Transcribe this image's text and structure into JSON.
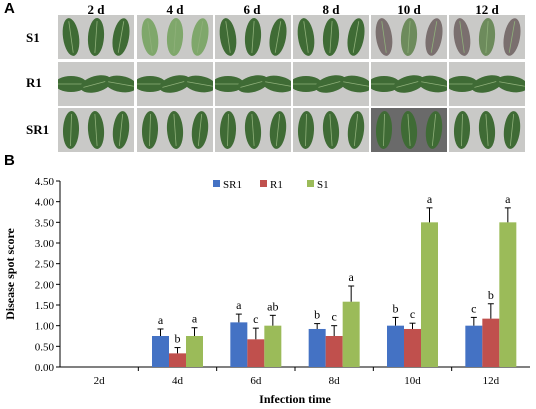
{
  "panel_a": {
    "label": "A",
    "days": [
      "2 d",
      "4 d",
      "6 d",
      "8 d",
      "10 d",
      "12 d"
    ],
    "rows": [
      "S1",
      "R1",
      "SR1"
    ],
    "leaf_color": "#3f6b35",
    "background_color": "#c9c9c7"
  },
  "panel_b": {
    "label": "B"
  },
  "chart_data": {
    "type": "bar",
    "categories": [
      "2d",
      "4d",
      "6d",
      "8d",
      "10d",
      "12d"
    ],
    "ylabel": "Disease spot score",
    "xlabel": "Infection time",
    "ylim": [
      0,
      4.5
    ],
    "yticks": [
      "0.00",
      "0.50",
      "1.00",
      "1.50",
      "2.00",
      "2.50",
      "3.00",
      "3.50",
      "4.00",
      "4.50"
    ],
    "legend_position": "top-center",
    "series": [
      {
        "name": "SR1",
        "color": "#4472c4",
        "values": [
          0,
          0.75,
          1.08,
          0.92,
          1.0,
          1.0
        ],
        "errors": [
          0,
          0.17,
          0.2,
          0.13,
          0.2,
          0.2
        ],
        "letters": [
          "",
          "a",
          "a",
          "b",
          "b",
          "c"
        ]
      },
      {
        "name": "R1",
        "color": "#c0504d",
        "values": [
          0,
          0.33,
          0.67,
          0.75,
          0.92,
          1.17
        ],
        "errors": [
          0,
          0.14,
          0.27,
          0.25,
          0.14,
          0.36
        ],
        "letters": [
          "",
          "b",
          "c",
          "c",
          "c",
          "b"
        ]
      },
      {
        "name": "S1",
        "color": "#9bbb59",
        "values": [
          0,
          0.75,
          1.0,
          1.58,
          3.5,
          3.5
        ],
        "errors": [
          0,
          0.2,
          0.25,
          0.38,
          0.35,
          0.35
        ],
        "letters": [
          "",
          "a",
          "ab",
          "a",
          "a",
          "a"
        ]
      }
    ]
  }
}
